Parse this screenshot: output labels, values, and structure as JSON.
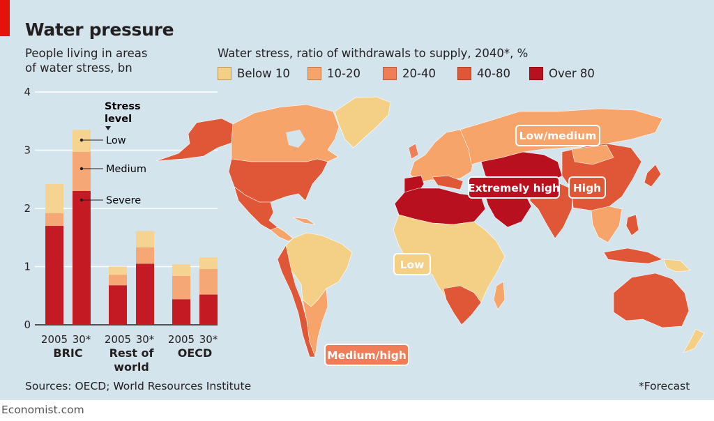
{
  "title": "Water pressure",
  "bar_subtitle": [
    "People living in areas",
    "of water stress, bn"
  ],
  "map_subtitle": "Water stress, ratio of withdrawals to supply, 2040*, %",
  "legend": [
    {
      "label": "Below 10",
      "color": "#f4cf86"
    },
    {
      "label": "10-20",
      "color": "#f6a46a"
    },
    {
      "label": "20-40",
      "color": "#ef7e58"
    },
    {
      "label": "40-80",
      "color": "#e05738"
    },
    {
      "label": "Over 80",
      "color": "#b8101f"
    }
  ],
  "stress_levels": {
    "header": [
      "Stress",
      "level"
    ],
    "low": "Low",
    "medium": "Medium",
    "severe": "Severe"
  },
  "chart_data": {
    "type": "bar",
    "stacked": true,
    "ylim": [
      0,
      4
    ],
    "yticks": [
      "0",
      "1",
      "2",
      "3",
      "4"
    ],
    "ylabel": "People living in areas of water stress, bn",
    "groups": [
      {
        "name": [
          "BRIC"
        ],
        "bars": [
          {
            "label": "2005",
            "severe": 1.7,
            "medium": 0.22,
            "low": 0.5
          },
          {
            "label": "30*",
            "severe": 2.3,
            "medium": 0.67,
            "low": 0.38
          }
        ]
      },
      {
        "name": [
          "Rest of",
          "world"
        ],
        "bars": [
          {
            "label": "2005",
            "severe": 0.68,
            "medium": 0.18,
            "low": 0.14
          },
          {
            "label": "30*",
            "severe": 1.05,
            "medium": 0.28,
            "low": 0.28
          }
        ]
      },
      {
        "name": [
          "OECD"
        ],
        "bars": [
          {
            "label": "2005",
            "severe": 0.44,
            "medium": 0.4,
            "low": 0.2
          },
          {
            "label": "30*",
            "severe": 0.52,
            "medium": 0.44,
            "low": 0.2
          }
        ]
      }
    ],
    "series_colors": {
      "severe": "#c41a23",
      "medium": "#f5a776",
      "low": "#f6d391"
    }
  },
  "map_labels": {
    "low_medium": "Low/medium",
    "extremely_high": "Extremely high",
    "high": "High",
    "low": "Low",
    "medium_high": "Medium/high"
  },
  "sources": "Sources: OECD; World Resources Institute",
  "forecast": "*Forecast",
  "brand": "Economist.com"
}
